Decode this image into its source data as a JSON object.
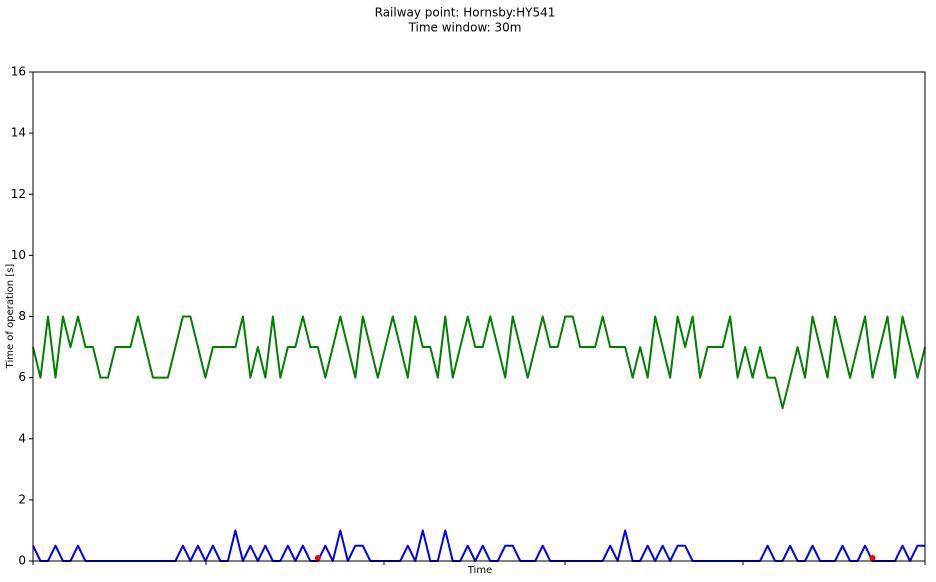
{
  "chart_data": {
    "type": "line",
    "title": "Railway point: Hornsby:HY541",
    "subtitle": "Time window: 30m",
    "xlabel": "Time",
    "ylabel": "Time of operation [s]",
    "ylim": [
      0,
      16
    ],
    "yticks": [
      0,
      2,
      4,
      6,
      8,
      10,
      12,
      14,
      16
    ],
    "grid": false,
    "series": [
      {
        "color": "#008000",
        "mode": "line",
        "values": [
          7,
          6,
          8,
          6,
          8,
          7,
          8,
          7,
          7,
          6,
          6,
          7,
          7,
          7,
          8,
          7,
          6,
          6,
          6,
          7,
          8,
          8,
          7,
          6,
          7,
          7,
          7,
          7,
          8,
          6,
          7,
          6,
          8,
          6,
          7,
          7,
          8,
          7,
          7,
          6,
          7,
          8,
          7,
          6,
          8,
          7,
          6,
          7,
          8,
          7,
          6,
          8,
          7,
          7,
          6,
          8,
          6,
          7,
          8,
          7,
          7,
          8,
          7,
          6,
          8,
          7,
          6,
          7,
          8,
          7,
          7,
          8,
          8,
          7,
          7,
          7,
          8,
          7,
          7,
          7,
          6,
          7,
          6,
          8,
          7,
          6,
          8,
          7,
          8,
          6,
          7,
          7,
          7,
          8,
          6,
          7,
          6,
          7,
          6,
          6,
          5,
          6,
          7,
          6,
          8,
          7,
          6,
          8,
          7,
          6,
          7,
          8,
          6,
          7,
          8,
          6,
          8,
          7,
          6,
          7
        ]
      },
      {
        "color": "#0000ff",
        "mode": "line",
        "values": [
          0.5,
          0,
          0,
          0.5,
          0,
          0,
          0.5,
          0,
          0,
          0,
          0,
          0,
          0,
          0,
          0,
          0,
          0,
          0,
          0,
          0,
          0.5,
          0,
          0.5,
          0,
          0.5,
          0,
          0,
          1,
          0,
          0.5,
          0,
          0.5,
          0,
          0,
          0.5,
          0,
          0.5,
          0,
          0,
          0.5,
          0,
          1,
          0,
          0.5,
          0.5,
          0,
          0,
          0,
          0,
          0,
          0.5,
          0,
          1,
          0,
          0,
          1,
          0,
          0,
          0.5,
          0,
          0.5,
          0,
          0,
          0.5,
          0.5,
          0,
          0,
          0,
          0.5,
          0,
          0,
          0,
          0,
          0,
          0,
          0,
          0,
          0.5,
          0,
          1,
          0,
          0,
          0.5,
          0,
          0.5,
          0,
          0.5,
          0.5,
          0,
          0,
          0,
          0,
          0,
          0,
          0,
          0,
          0,
          0,
          0.5,
          0,
          0,
          0.5,
          0,
          0,
          0.5,
          0,
          0,
          0,
          0.5,
          0,
          0,
          0.5,
          0,
          0,
          0,
          0,
          0.5,
          0,
          0.5,
          0.5
        ]
      },
      {
        "color": "#ff0000",
        "mode": "points",
        "values": [
          null,
          null,
          null,
          null,
          null,
          null,
          null,
          null,
          null,
          null,
          null,
          null,
          null,
          null,
          null,
          null,
          null,
          null,
          null,
          null,
          null,
          null,
          null,
          null,
          null,
          null,
          null,
          null,
          null,
          null,
          null,
          null,
          null,
          null,
          null,
          null,
          null,
          null,
          0.1,
          null,
          null,
          null,
          null,
          null,
          null,
          null,
          null,
          null,
          null,
          null,
          null,
          null,
          null,
          null,
          null,
          null,
          null,
          null,
          null,
          null,
          null,
          null,
          null,
          null,
          null,
          null,
          null,
          null,
          null,
          null,
          null,
          null,
          null,
          null,
          null,
          null,
          null,
          null,
          null,
          null,
          null,
          null,
          null,
          null,
          null,
          null,
          null,
          null,
          null,
          null,
          null,
          null,
          null,
          null,
          null,
          null,
          null,
          null,
          null,
          null,
          null,
          null,
          null,
          null,
          null,
          null,
          null,
          null,
          null,
          null,
          null,
          null,
          0.1,
          null,
          null,
          null,
          null,
          null,
          null,
          null
        ]
      }
    ]
  }
}
